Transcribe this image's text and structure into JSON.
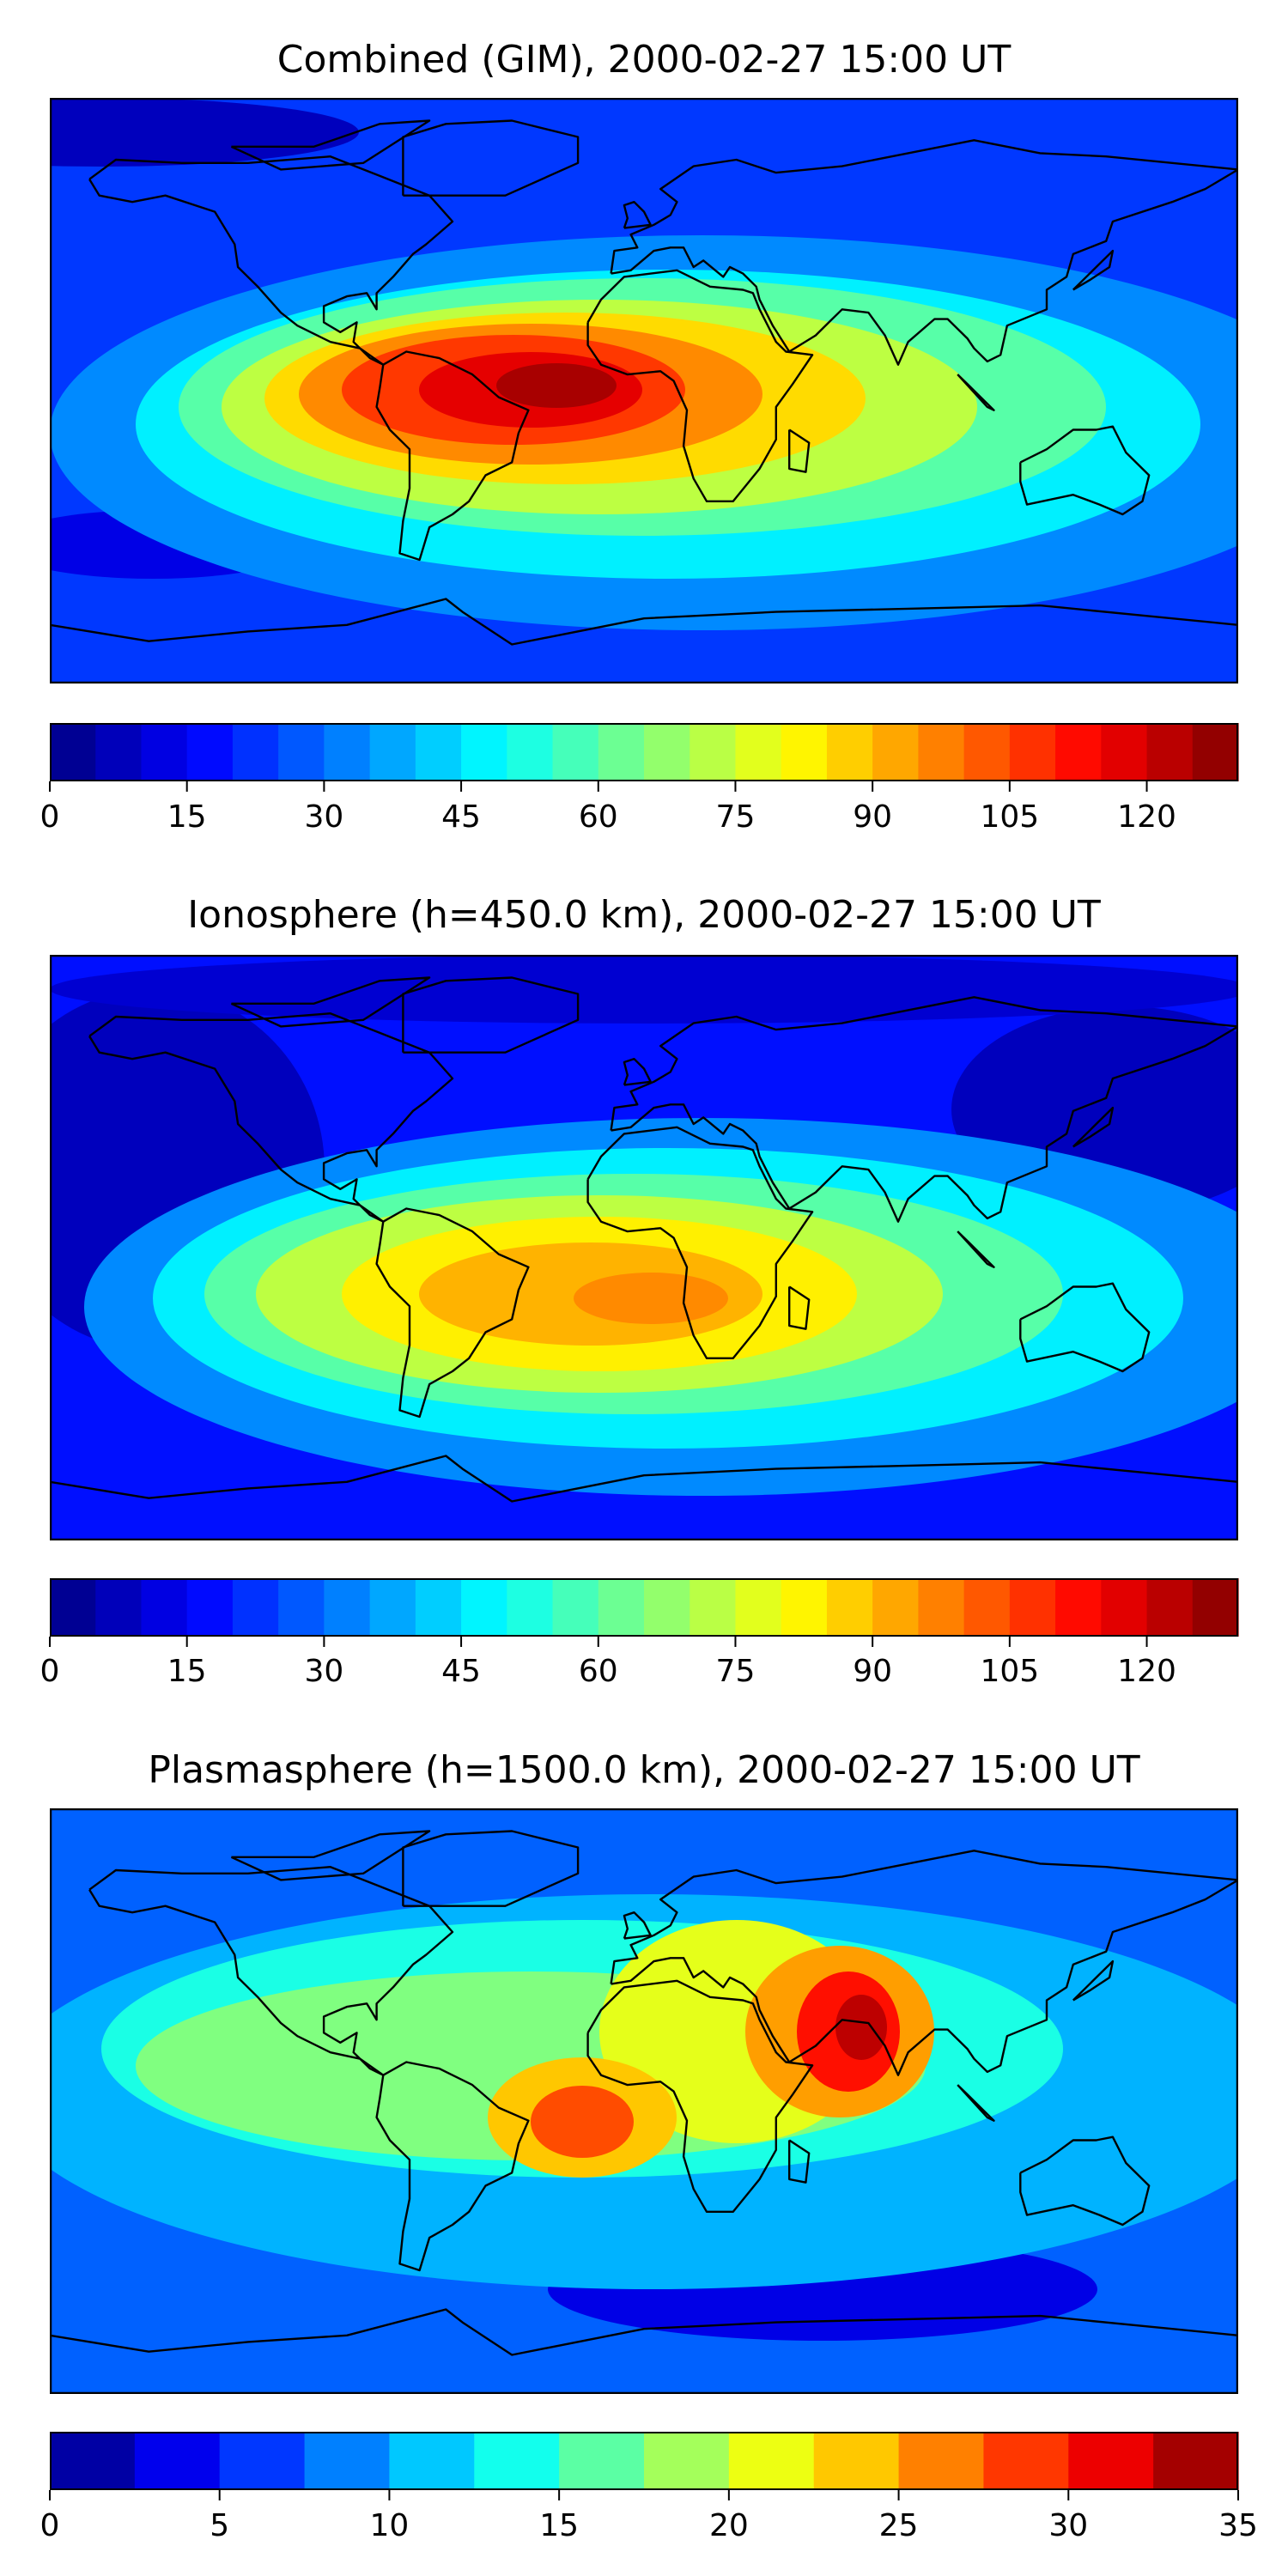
{
  "figure": {
    "panels": [
      {
        "id": "combined",
        "title": "Combined (GIM), 2000-02-27 15:00 UT",
        "colorbar": {
          "min": 0,
          "max": 130,
          "levels": 26,
          "ticks": [
            "0",
            "15",
            "30",
            "45",
            "60",
            "75",
            "90",
            "105",
            "120"
          ],
          "tick_values": [
            0,
            15,
            30,
            45,
            60,
            75,
            90,
            105,
            120
          ]
        }
      },
      {
        "id": "ionosphere",
        "title": "Ionosphere  (h=450.0 km), 2000-02-27 15:00 UT",
        "colorbar": {
          "min": 0,
          "max": 130,
          "levels": 26,
          "ticks": [
            "0",
            "15",
            "30",
            "45",
            "60",
            "75",
            "90",
            "105",
            "120"
          ],
          "tick_values": [
            0,
            15,
            30,
            45,
            60,
            75,
            90,
            105,
            120
          ]
        }
      },
      {
        "id": "plasmasphere",
        "title": "Plasmasphere (h=1500.0 km), 2000-02-27 15:00 UT",
        "colorbar": {
          "min": 0,
          "max": 35,
          "levels": 14,
          "ticks": [
            "0",
            "5",
            "10",
            "15",
            "20",
            "25",
            "30",
            "35"
          ],
          "tick_values": [
            0,
            5,
            10,
            15,
            20,
            25,
            30,
            35
          ]
        }
      }
    ],
    "colormap": "jet"
  }
}
